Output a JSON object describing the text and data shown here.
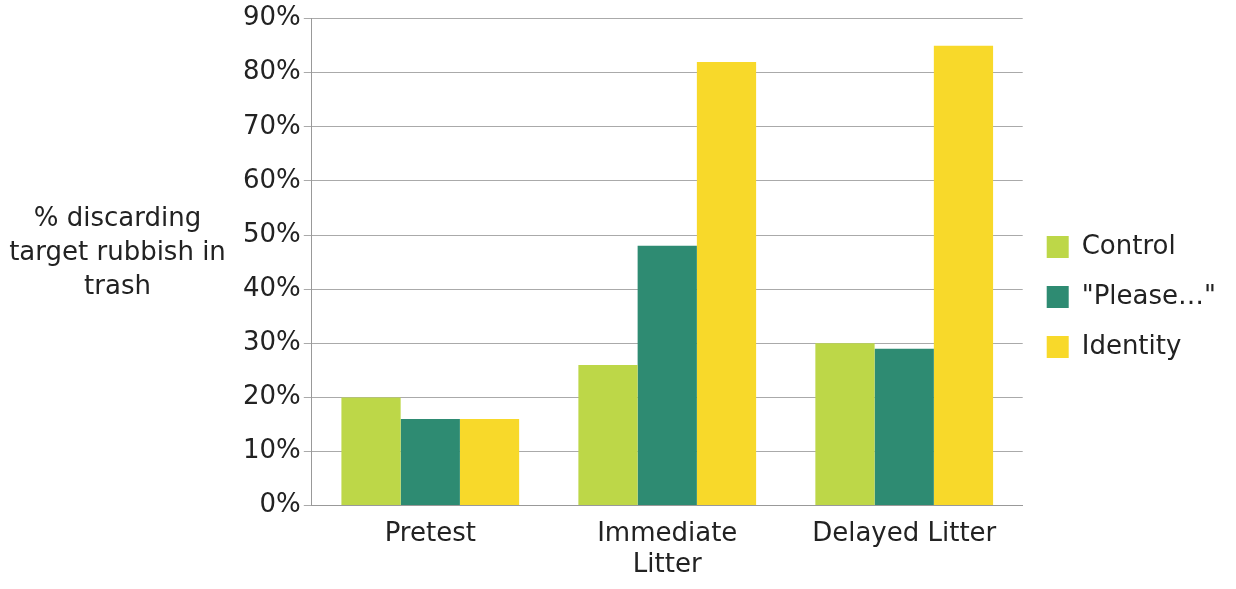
{
  "chart_data": {
    "type": "bar",
    "ylabel": "% discarding target rubbish in trash",
    "categories": [
      "Pretest",
      "Immediate Litter",
      "Delayed Litter"
    ],
    "series": [
      {
        "name": "Control",
        "color": "#bdd748",
        "values": [
          20,
          26,
          30
        ]
      },
      {
        "name": "\"Please…\"",
        "color": "#2e8b72",
        "values": [
          16,
          48,
          29
        ]
      },
      {
        "name": "Identity",
        "color": "#f8d92a",
        "values": [
          16,
          82,
          85
        ]
      }
    ],
    "ylim": [
      0,
      90
    ],
    "yticks": [
      {
        "value": 0,
        "label": "0%"
      },
      {
        "value": 10,
        "label": "10%"
      },
      {
        "value": 20,
        "label": "20%"
      },
      {
        "value": 30,
        "label": "30%"
      },
      {
        "value": 40,
        "label": "40%"
      },
      {
        "value": 50,
        "label": "50%"
      },
      {
        "value": 60,
        "label": "60%"
      },
      {
        "value": 70,
        "label": "70%"
      },
      {
        "value": 80,
        "label": "80%"
      },
      {
        "value": 90,
        "label": "90%"
      }
    ],
    "grid": "y",
    "legend": "right"
  }
}
